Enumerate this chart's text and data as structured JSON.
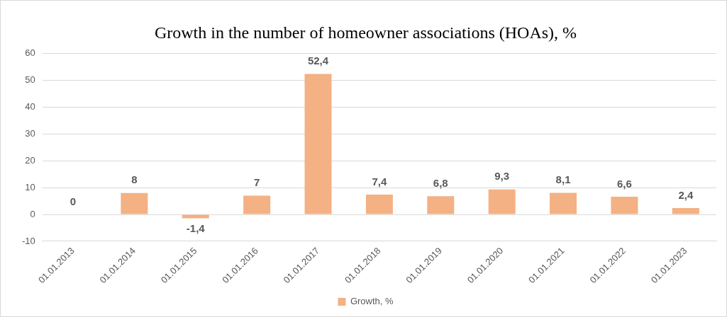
{
  "chart_data": {
    "type": "bar",
    "title": "Growth in the number of homeowner associations (HOAs), %",
    "categories": [
      "01.01.2013",
      "01.01.2014",
      "01.01.2015",
      "01.01.2016",
      "01.01.2017",
      "01.01.2018",
      "01.01.2019",
      "01.01.2020",
      "01.01.2021",
      "01.01.2022",
      "01.01.2023"
    ],
    "series": [
      {
        "name": "Growth, %",
        "color": "#f4b183",
        "values": [
          0,
          8,
          -1.4,
          7,
          52.4,
          7.4,
          6.8,
          9.3,
          8.1,
          6.6,
          2.4
        ],
        "value_labels": [
          "0",
          "8",
          "-1,4",
          "7",
          "52,4",
          "7,4",
          "6,8",
          "9,3",
          "8,1",
          "6,6",
          "2,4"
        ]
      }
    ],
    "ylim": [
      -10,
      60
    ],
    "yticks": [
      -10,
      0,
      10,
      20,
      30,
      40,
      50,
      60
    ],
    "grid": "y",
    "legend": "bottom"
  }
}
